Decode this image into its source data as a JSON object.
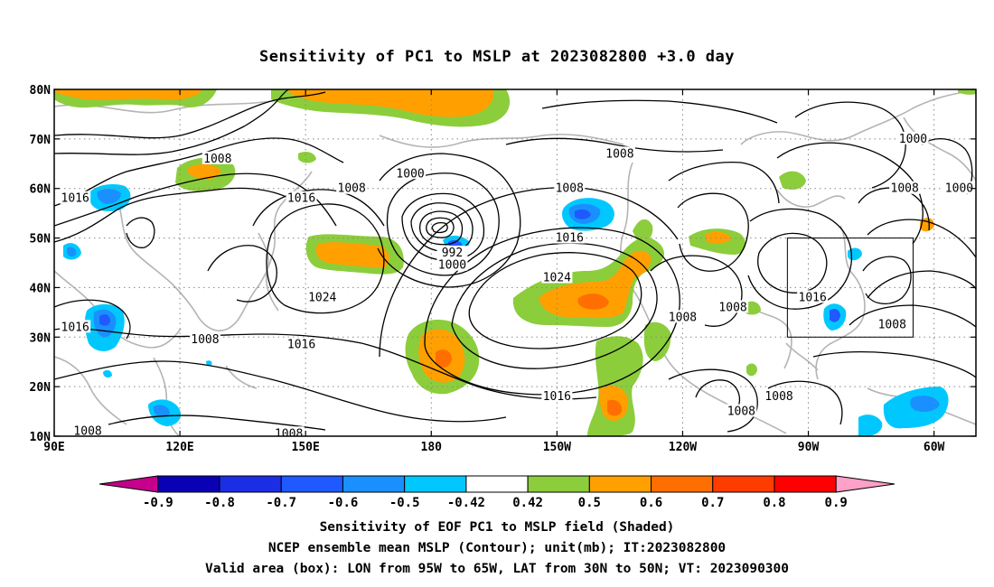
{
  "title": "Sensitivity of PC1 to MSLP at 2023082800 +3.0 day",
  "map": {
    "lon_range": [
      90,
      310
    ],
    "lat_range": [
      10,
      80
    ],
    "lat_ticks": [
      {
        "lat": 80,
        "label": "80N"
      },
      {
        "lat": 70,
        "label": "70N"
      },
      {
        "lat": 60,
        "label": "60N"
      },
      {
        "lat": 50,
        "label": "50N"
      },
      {
        "lat": 40,
        "label": "40N"
      },
      {
        "lat": 30,
        "label": "30N"
      },
      {
        "lat": 20,
        "label": "20N"
      },
      {
        "lat": 10,
        "label": "10N"
      }
    ],
    "lon_ticks": [
      {
        "lon": 90,
        "label": "90E"
      },
      {
        "lon": 120,
        "label": "120E"
      },
      {
        "lon": 150,
        "label": "150E"
      },
      {
        "lon": 180,
        "label": "180"
      },
      {
        "lon": 210,
        "label": "150W"
      },
      {
        "lon": 240,
        "label": "120W"
      },
      {
        "lon": 270,
        "label": "90W"
      },
      {
        "lon": 300,
        "label": "60W"
      }
    ],
    "grid_lats": [
      20,
      30,
      40,
      50,
      60,
      70
    ],
    "grid_lons": [
      120,
      150,
      180,
      210,
      240,
      270,
      300
    ],
    "valid_box": {
      "lon_min": 265,
      "lon_max": 295,
      "lat_min": 30,
      "lat_max": 50
    },
    "contour_labels": [
      {
        "text": "1008",
        "lon": 129,
        "lat": 66
      },
      {
        "text": "1000",
        "lon": 175,
        "lat": 63
      },
      {
        "text": "1008",
        "lon": 161,
        "lat": 60
      },
      {
        "text": "1016",
        "lon": 95,
        "lat": 58
      },
      {
        "text": "1016",
        "lon": 149,
        "lat": 58
      },
      {
        "text": "1008",
        "lon": 225,
        "lat": 67
      },
      {
        "text": "1008",
        "lon": 213,
        "lat": 60
      },
      {
        "text": "1000",
        "lon": 295,
        "lat": 70
      },
      {
        "text": "1008",
        "lon": 293,
        "lat": 60
      },
      {
        "text": "1000",
        "lon": 306,
        "lat": 60
      },
      {
        "text": "992",
        "lon": 185,
        "lat": 47
      },
      {
        "text": "1000",
        "lon": 185,
        "lat": 44.5
      },
      {
        "text": "1016",
        "lon": 213,
        "lat": 50
      },
      {
        "text": "1024",
        "lon": 210,
        "lat": 42
      },
      {
        "text": "1024",
        "lon": 154,
        "lat": 38
      },
      {
        "text": "1016",
        "lon": 95,
        "lat": 32
      },
      {
        "text": "1008",
        "lon": 126,
        "lat": 29.5
      },
      {
        "text": "1016",
        "lon": 149,
        "lat": 28.5
      },
      {
        "text": "1008",
        "lon": 240,
        "lat": 34
      },
      {
        "text": "1008",
        "lon": 252,
        "lat": 36
      },
      {
        "text": "1016",
        "lon": 271,
        "lat": 38
      },
      {
        "text": "1008",
        "lon": 290,
        "lat": 32.5
      },
      {
        "text": "1016",
        "lon": 210,
        "lat": 18
      },
      {
        "text": "1008",
        "lon": 263,
        "lat": 18
      },
      {
        "text": "1008",
        "lon": 254,
        "lat": 15
      },
      {
        "text": "1008",
        "lon": 98,
        "lat": 11
      },
      {
        "text": "1008",
        "lon": 146,
        "lat": 10.5
      }
    ]
  },
  "colorbar": {
    "labels": [
      "-0.9",
      "-0.8",
      "-0.7",
      "-0.6",
      "-0.5",
      "-0.42",
      "0.42",
      "0.5",
      "0.6",
      "0.7",
      "0.8",
      "0.9"
    ],
    "colors": [
      "#c6008c",
      "#0a00b4",
      "#1c2de6",
      "#1e5aff",
      "#1a90ff",
      "#00c8ff",
      "#ffffff",
      "#8ccd3c",
      "#ffa000",
      "#ff6e00",
      "#ff3c00",
      "#ff0000",
      "#ffa0c8"
    ]
  },
  "captions": [
    "Sensitivity of EOF PC1 to MSLP field (Shaded)",
    "NCEP ensemble mean MSLP (Contour); unit(mb); IT:2023082800",
    "Valid area (box): LON from 95W to 65W, LAT from 30N to 50N; VT: 2023090300"
  ]
}
